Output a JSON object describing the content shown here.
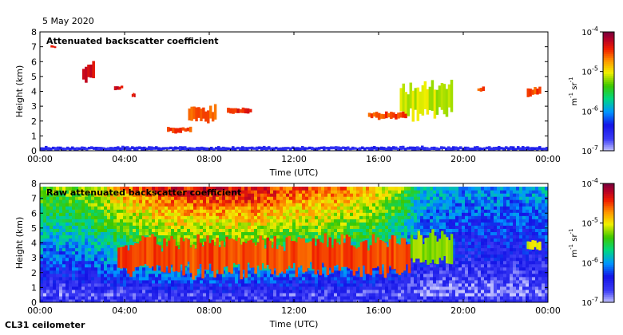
{
  "header": {
    "date": "5 May 2020"
  },
  "footer": {
    "instrument": "CL31 ceilometer"
  },
  "colors": {
    "low": "#c8c8ff",
    "mid": "#00aa00",
    "high": "#880033"
  },
  "chart_data": [
    {
      "type": "heatmap",
      "title": "Attenuated backscatter coefficient",
      "xlabel": "Time (UTC)",
      "ylabel": "Height (km)",
      "xlim": [
        "00:00",
        "24:00"
      ],
      "ylim": [
        0,
        8
      ],
      "x_ticks": [
        "00:00",
        "04:00",
        "08:00",
        "12:00",
        "16:00",
        "20:00",
        "00:00"
      ],
      "y_ticks": [
        "0",
        "1",
        "2",
        "3",
        "4",
        "5",
        "6",
        "7",
        "8"
      ],
      "colorbar": {
        "label": "m-1 sr-1",
        "scale": "log",
        "ticks": [
          "10-7",
          "10-6",
          "10-5",
          "10-4"
        ],
        "range": [
          1e-07,
          0.0001
        ]
      },
      "features": [
        {
          "start": "00:00",
          "end": "24:00",
          "base_km": 0.0,
          "top_km": 0.3,
          "value": 3e-07
        },
        {
          "start": "00:30",
          "end": "00:45",
          "base_km": 6.9,
          "top_km": 7.1,
          "value": 4e-05
        },
        {
          "start": "02:00",
          "end": "02:35",
          "base_km": 4.7,
          "top_km": 5.9,
          "value": 5e-05
        },
        {
          "start": "03:30",
          "end": "03:55",
          "base_km": 4.1,
          "top_km": 4.4,
          "value": 5e-05
        },
        {
          "start": "04:20",
          "end": "04:30",
          "base_km": 3.6,
          "top_km": 3.9,
          "value": 4e-05
        },
        {
          "start": "06:00",
          "end": "07:10",
          "base_km": 1.2,
          "top_km": 1.6,
          "value": 3e-05
        },
        {
          "start": "07:00",
          "end": "08:20",
          "base_km": 1.9,
          "top_km": 3.0,
          "value": 3e-05
        },
        {
          "start": "08:50",
          "end": "10:00",
          "base_km": 2.5,
          "top_km": 2.9,
          "value": 4e-05
        },
        {
          "start": "15:30",
          "end": "17:20",
          "base_km": 2.1,
          "top_km": 2.6,
          "value": 3e-05
        },
        {
          "start": "17:00",
          "end": "19:30",
          "base_km": 2.2,
          "top_km": 4.5,
          "value": 8e-06
        },
        {
          "start": "20:40",
          "end": "21:00",
          "base_km": 4.0,
          "top_km": 4.3,
          "value": 3e-05
        },
        {
          "start": "23:00",
          "end": "23:40",
          "base_km": 3.7,
          "top_km": 4.3,
          "value": 3e-05
        }
      ]
    },
    {
      "type": "heatmap",
      "title": "Raw attenuated backscatter coefficient",
      "xlabel": "Time (UTC)",
      "ylabel": "Height (km)",
      "xlim": [
        "00:00",
        "24:00"
      ],
      "ylim": [
        0,
        8
      ],
      "x_ticks": [
        "00:00",
        "04:00",
        "08:00",
        "12:00",
        "16:00",
        "20:00",
        "00:00"
      ],
      "y_ticks": [
        "0",
        "1",
        "2",
        "3",
        "4",
        "5",
        "6",
        "7",
        "8"
      ],
      "colorbar": {
        "label": "m-1 sr-1",
        "scale": "log",
        "ticks": [
          "10-7",
          "10-6",
          "10-5",
          "10-4"
        ],
        "range": [
          1e-07,
          0.0001
        ]
      },
      "noise_profile": {
        "hours": [
          0,
          2,
          4,
          6,
          8,
          10,
          12,
          14,
          16,
          17,
          18,
          20,
          22,
          24
        ],
        "noise_at_top_log10": [
          -5.3,
          -5.2,
          -4.7,
          -4.4,
          -4.3,
          -4.3,
          -4.5,
          -4.6,
          -4.9,
          -5.2,
          -5.8,
          -6.0,
          -6.0,
          -5.9
        ]
      },
      "features": [
        {
          "start": "03:40",
          "end": "17:30",
          "base_km": 1.9,
          "top_km": 4.3,
          "value": 3e-05
        },
        {
          "start": "17:30",
          "end": "19:30",
          "base_km": 2.5,
          "top_km": 4.6,
          "value": 6e-06
        },
        {
          "start": "23:00",
          "end": "23:40",
          "base_km": 3.5,
          "top_km": 4.2,
          "value": 1e-05
        }
      ]
    }
  ]
}
